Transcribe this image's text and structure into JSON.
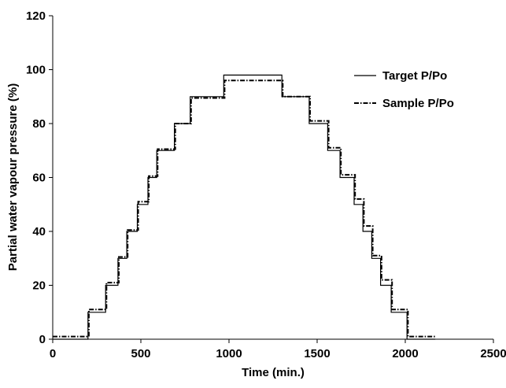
{
  "chart_data": {
    "type": "line",
    "title": "",
    "xlabel": "Time (min.)",
    "ylabel": "Partial water vapour pressure (%)",
    "xlim": [
      0,
      2500
    ],
    "ylim": [
      0,
      120
    ],
    "xticks": [
      "0",
      "500",
      "1000",
      "1500",
      "2000",
      "2500"
    ],
    "yticks": [
      "0",
      "20",
      "40",
      "60",
      "80",
      "100",
      "120"
    ],
    "grid": false,
    "legend_position": "right",
    "series": [
      {
        "name": "Target P/Po",
        "style": "solid",
        "color": "#000000",
        "x": [
          0,
          200,
          200,
          300,
          300,
          370,
          370,
          420,
          420,
          480,
          480,
          540,
          540,
          590,
          590,
          690,
          690,
          780,
          780,
          970,
          970,
          1300,
          1300,
          1455,
          1455,
          1560,
          1560,
          1630,
          1630,
          1710,
          1710,
          1760,
          1760,
          1810,
          1810,
          1860,
          1860,
          1920,
          1920,
          2010,
          2010,
          2170
        ],
        "y": [
          0,
          0,
          10,
          10,
          20,
          20,
          30,
          30,
          40,
          40,
          50,
          50,
          60,
          60,
          70,
          70,
          80,
          80,
          90,
          90,
          98,
          98,
          90,
          90,
          80,
          80,
          70,
          70,
          60,
          60,
          50,
          50,
          40,
          40,
          30,
          30,
          20,
          20,
          10,
          10,
          0,
          0
        ]
      },
      {
        "name": "Sample P/Po",
        "style": "dash-dot",
        "color": "#000000",
        "x": [
          0,
          205,
          205,
          305,
          305,
          375,
          375,
          425,
          425,
          485,
          485,
          545,
          545,
          595,
          595,
          695,
          695,
          785,
          785,
          975,
          975,
          1305,
          1305,
          1460,
          1460,
          1565,
          1565,
          1635,
          1635,
          1715,
          1715,
          1765,
          1765,
          1815,
          1815,
          1865,
          1865,
          1925,
          1925,
          2015,
          2015,
          2175
        ],
        "y": [
          1,
          1,
          11,
          11,
          21,
          21,
          30.5,
          30.5,
          40.5,
          40.5,
          51,
          51,
          60.5,
          60.5,
          70.5,
          70.5,
          80,
          80,
          89.5,
          89.5,
          96,
          96,
          90,
          90,
          81,
          81,
          71,
          71,
          61,
          61,
          52,
          52,
          42,
          42,
          31,
          31,
          22,
          22,
          11,
          11,
          1,
          1
        ]
      }
    ]
  }
}
